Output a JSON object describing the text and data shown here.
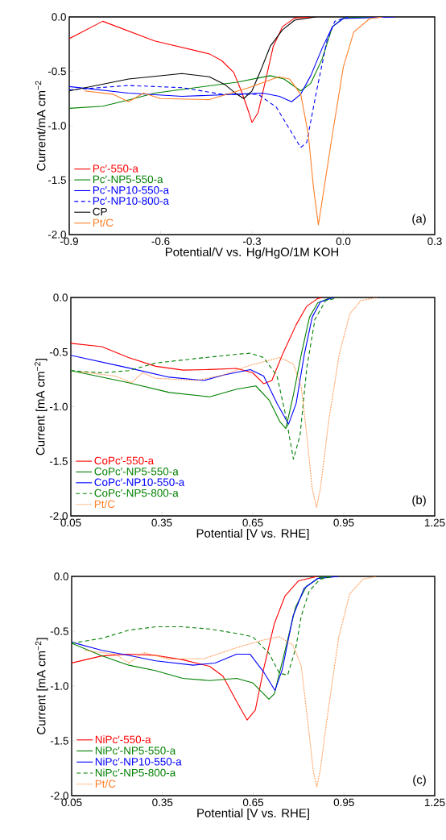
{
  "chart_data": [
    {
      "type": "line",
      "xlabel": "Potential/V vs. Hg/HgO/1M KOH",
      "ylabel": "Current/mA cm$^{−2}$",
      "annotations": [
        "(a)"
      ],
      "legend": "bottom left",
      "grid": false,
      "xlim": [
        -0.9,
        0.3
      ],
      "xticks": [
        {
          "value": -0.9,
          "label": "-0.9"
        },
        {
          "value": -0.6,
          "label": "-0.6"
        },
        {
          "value": -0.3,
          "label": "-0.3"
        },
        {
          "value": 0,
          "label": "0.0"
        },
        {
          "value": 0.3,
          "label": "0.3"
        }
      ],
      "ylim": [
        -2,
        0
      ],
      "yticks": [
        {
          "value": -2,
          "label": "-2.0"
        },
        {
          "value": -1.5,
          "label": "-1.5"
        },
        {
          "value": -1,
          "label": "-1.0"
        },
        {
          "value": -0.5,
          "label": "-0.5"
        },
        {
          "value": 0,
          "label": "0.0"
        }
      ],
      "series": [
        {
          "name": "Pc′-550-a",
          "color": "#ff0000",
          "line_style": "solid",
          "x": [
            -0.9,
            -0.79,
            -0.62,
            -0.44,
            -0.4,
            -0.36,
            -0.335,
            -0.31,
            -0.3,
            -0.28,
            -0.256,
            -0.23,
            -0.2,
            -0.16,
            -0.09
          ],
          "values": [
            -0.2,
            -0.04,
            -0.22,
            -0.34,
            -0.4,
            -0.51,
            -0.68,
            -0.88,
            -0.97,
            -0.88,
            -0.59,
            -0.27,
            -0.09,
            -0.01,
            0
          ]
        },
        {
          "name": "Pc′-NP5-550-a",
          "color": "#008000",
          "line_style": "solid",
          "x": [
            -0.9,
            -0.79,
            -0.7,
            -0.62,
            -0.485,
            -0.35,
            -0.24,
            -0.195,
            -0.14,
            -0.107,
            -0.07,
            -0.036,
            0,
            0.09
          ],
          "values": [
            -0.84,
            -0.82,
            -0.76,
            -0.7,
            -0.65,
            -0.6,
            -0.54,
            -0.57,
            -0.68,
            -0.61,
            -0.39,
            -0.09,
            -0.01,
            0
          ]
        },
        {
          "name": "Pc′-NP10-550-a",
          "color": "#0000ff",
          "line_style": "solid",
          "x": [
            -0.9,
            -0.705,
            -0.53,
            -0.35,
            -0.265,
            -0.21,
            -0.17,
            -0.14,
            -0.107,
            -0.07,
            -0.036,
            0,
            0.17
          ],
          "values": [
            -0.64,
            -0.7,
            -0.73,
            -0.71,
            -0.7,
            -0.73,
            -0.78,
            -0.71,
            -0.54,
            -0.29,
            -0.09,
            -0.015,
            0
          ]
        },
        {
          "name": "Pc′-NP10-800-a",
          "color": "#0000ff",
          "line_style": "dashed",
          "x": [
            -0.9,
            -0.705,
            -0.53,
            -0.4,
            -0.28,
            -0.22,
            -0.177,
            -0.14,
            -0.12,
            -0.09,
            -0.054,
            -0.028,
            0.016
          ],
          "values": [
            -0.67,
            -0.63,
            -0.65,
            -0.71,
            -0.71,
            -0.83,
            -1.03,
            -1.2,
            -1.15,
            -0.71,
            -0.22,
            -0.04,
            0
          ]
        },
        {
          "name": "CP",
          "color": "#000000",
          "line_style": "solid",
          "x": [
            -0.9,
            -0.705,
            -0.53,
            -0.44,
            -0.39,
            -0.35,
            -0.327,
            -0.3,
            -0.274,
            -0.24,
            -0.2,
            -0.16,
            -0.09
          ],
          "values": [
            -0.68,
            -0.57,
            -0.52,
            -0.55,
            -0.62,
            -0.71,
            -0.75,
            -0.68,
            -0.51,
            -0.27,
            -0.12,
            -0.03,
            0
          ]
        },
        {
          "name": "Pt/C",
          "color": "#ff7f27",
          "line_style": "solid",
          "x": [
            -0.85,
            -0.757,
            -0.705,
            -0.656,
            -0.6,
            -0.44,
            -0.31,
            -0.212,
            -0.177,
            -0.14,
            -0.115,
            -0.098,
            -0.082,
            -0.063,
            -0.036,
            0,
            0.034,
            0.087,
            0.13
          ],
          "values": [
            -0.68,
            -0.71,
            -0.78,
            -0.7,
            -0.75,
            -0.76,
            -0.65,
            -0.55,
            -0.57,
            -0.71,
            -1.08,
            -1.57,
            -1.91,
            -1.57,
            -1.08,
            -0.46,
            -0.14,
            -0.015,
            0
          ]
        }
      ]
    },
    {
      "type": "line",
      "xlabel": "Potential [V vs. RHE]",
      "ylabel": "Current [mA cm$^{−2}$]",
      "annotations": [
        "(b)"
      ],
      "legend": "bottom left",
      "grid": false,
      "xlim": [
        0.05,
        1.25
      ],
      "xticks": [
        {
          "value": 0.05,
          "label": "0.05"
        },
        {
          "value": 0.35,
          "label": "0.35"
        },
        {
          "value": 0.65,
          "label": "0.65"
        },
        {
          "value": 0.95,
          "label": "0.95"
        },
        {
          "value": 1.25,
          "label": "1.25"
        }
      ],
      "ylim": [
        -2,
        0
      ],
      "yticks": [
        {
          "value": -2,
          "label": "-2.0"
        },
        {
          "value": -1.5,
          "label": "-1.5"
        },
        {
          "value": -1,
          "label": "-1.0"
        },
        {
          "value": -0.5,
          "label": "-0.5"
        },
        {
          "value": 0,
          "label": "0.0"
        }
      ],
      "series": [
        {
          "name": "CoPc′-550-a",
          "color": "#ff0000",
          "line_style": "solid",
          "x": [
            0.05,
            0.152,
            0.24,
            0.33,
            0.42,
            0.508,
            0.597,
            0.65,
            0.686,
            0.713,
            0.748,
            0.793,
            0.828,
            0.864,
            0.88
          ],
          "values": [
            -0.42,
            -0.45,
            -0.55,
            -0.63,
            -0.665,
            -0.66,
            -0.65,
            -0.69,
            -0.79,
            -0.76,
            -0.52,
            -0.25,
            -0.08,
            -0.01,
            0
          ]
        },
        {
          "name": "CoPc′-NP5-550-a",
          "color": "#008000",
          "line_style": "solid",
          "x": [
            0.05,
            0.24,
            0.375,
            0.508,
            0.597,
            0.66,
            0.704,
            0.74,
            0.759,
            0.784,
            0.81,
            0.837,
            0.864,
            0.908
          ],
          "values": [
            -0.67,
            -0.78,
            -0.87,
            -0.91,
            -0.84,
            -0.81,
            -0.94,
            -1.14,
            -1.2,
            -0.89,
            -0.52,
            -0.18,
            -0.05,
            0
          ]
        },
        {
          "name": "CoPc′-NP10-550-a",
          "color": "#0000ff",
          "line_style": "solid",
          "x": [
            0.05,
            0.24,
            0.375,
            0.49,
            0.553,
            0.642,
            0.686,
            0.73,
            0.768,
            0.793,
            0.82,
            0.846,
            0.873,
            0.917
          ],
          "values": [
            -0.53,
            -0.645,
            -0.73,
            -0.76,
            -0.71,
            -0.66,
            -0.72,
            -0.97,
            -1.16,
            -0.97,
            -0.52,
            -0.18,
            -0.04,
            0
          ]
        },
        {
          "name": "CoPc′-NP5-800-a",
          "color": "#008000",
          "line_style": "dashed",
          "x": [
            0.05,
            0.152,
            0.24,
            0.33,
            0.46,
            0.597,
            0.642,
            0.686,
            0.73,
            0.757,
            0.784,
            0.806,
            0.828,
            0.855,
            0.89,
            0.935
          ],
          "values": [
            -0.67,
            -0.69,
            -0.67,
            -0.6,
            -0.56,
            -0.52,
            -0.51,
            -0.55,
            -0.72,
            -1.06,
            -1.48,
            -1.26,
            -0.645,
            -0.2,
            -0.03,
            0
          ]
        },
        {
          "name": "Pt/C",
          "color": "#ff7f27",
          "line_style": "dotted",
          "x": [
            0.081,
            0.197,
            0.25,
            0.286,
            0.33,
            0.464,
            0.553,
            0.642,
            0.74,
            0.784,
            0.81,
            0.828,
            0.846,
            0.86,
            0.873,
            0.9,
            0.935,
            0.97,
            1.006,
            1.06
          ],
          "values": [
            -0.68,
            -0.72,
            -0.78,
            -0.69,
            -0.74,
            -0.76,
            -0.71,
            -0.62,
            -0.55,
            -0.61,
            -0.82,
            -1.26,
            -1.75,
            -1.92,
            -1.75,
            -1.14,
            -0.52,
            -0.15,
            -0.03,
            0
          ]
        }
      ]
    },
    {
      "type": "line",
      "xlabel": "Potential [V vs. RHE]",
      "ylabel": "Current [mA cm$^{−2}$]",
      "annotations": [
        "(c)"
      ],
      "legend": "bottom left",
      "grid": false,
      "xlim": [
        0.05,
        1.25
      ],
      "xticks": [
        {
          "value": 0.05,
          "label": "0.05"
        },
        {
          "value": 0.35,
          "label": "0.35"
        },
        {
          "value": 0.65,
          "label": "0.65"
        },
        {
          "value": 0.95,
          "label": "0.95"
        },
        {
          "value": 1.25,
          "label": "1.25"
        }
      ],
      "ylim": [
        -2,
        0
      ],
      "yticks": [
        {
          "value": -2,
          "label": "-2.0"
        },
        {
          "value": -1.5,
          "label": "-1.5"
        },
        {
          "value": -1,
          "label": "-1.0"
        },
        {
          "value": -0.5,
          "label": "-0.5"
        },
        {
          "value": 0,
          "label": "0.0"
        }
      ],
      "series": [
        {
          "name": "NiPc′-550-a",
          "color": "#ff0000",
          "line_style": "solid",
          "x": [
            0.05,
            0.15,
            0.239,
            0.328,
            0.417,
            0.506,
            0.55,
            0.595,
            0.63,
            0.657,
            0.684,
            0.72,
            0.755,
            0.8,
            0.862
          ],
          "values": [
            -0.79,
            -0.725,
            -0.71,
            -0.72,
            -0.76,
            -0.82,
            -0.91,
            -1.14,
            -1.31,
            -1.22,
            -0.85,
            -0.43,
            -0.18,
            -0.04,
            0
          ]
        },
        {
          "name": "NiPc′-NP5-550-a",
          "color": "#008000",
          "line_style": "solid",
          "x": [
            0.05,
            0.15,
            0.239,
            0.328,
            0.417,
            0.506,
            0.595,
            0.648,
            0.702,
            0.72,
            0.755,
            0.79,
            0.826,
            0.87,
            0.915
          ],
          "values": [
            -0.61,
            -0.725,
            -0.81,
            -0.86,
            -0.93,
            -0.95,
            -0.93,
            -0.97,
            -1.12,
            -1.07,
            -0.68,
            -0.28,
            -0.09,
            -0.01,
            0
          ]
        },
        {
          "name": "NiPc′-NP10-550-a",
          "color": "#0000ff",
          "line_style": "solid",
          "x": [
            0.05,
            0.15,
            0.239,
            0.328,
            0.452,
            0.524,
            0.595,
            0.64,
            0.684,
            0.722,
            0.746,
            0.782,
            0.818,
            0.862,
            0.933
          ],
          "values": [
            -0.6,
            -0.675,
            -0.72,
            -0.77,
            -0.81,
            -0.79,
            -0.71,
            -0.71,
            -0.87,
            -1.04,
            -0.85,
            -0.36,
            -0.11,
            -0.02,
            0
          ]
        },
        {
          "name": "NiPc′-NP5-800-a",
          "color": "#008000",
          "line_style": "dashed",
          "x": [
            0.05,
            0.15,
            0.239,
            0.328,
            0.417,
            0.506,
            0.595,
            0.648,
            0.702,
            0.737,
            0.764,
            0.791,
            0.809,
            0.835,
            0.871,
            0.915
          ],
          "values": [
            -0.61,
            -0.565,
            -0.49,
            -0.46,
            -0.46,
            -0.48,
            -0.52,
            -0.55,
            -0.7,
            -0.885,
            -0.9,
            -0.65,
            -0.36,
            -0.135,
            -0.025,
            0
          ]
        },
        {
          "name": "Pt/C",
          "color": "#ff7f27",
          "line_style": "dotted",
          "x": [
            0.092,
            0.194,
            0.239,
            0.288,
            0.372,
            0.488,
            0.595,
            0.684,
            0.737,
            0.782,
            0.809,
            0.831,
            0.849,
            0.86,
            0.871,
            0.898,
            0.933,
            0.969,
            1.013,
            1.058
          ],
          "values": [
            -0.675,
            -0.71,
            -0.79,
            -0.695,
            -0.755,
            -0.75,
            -0.65,
            -0.58,
            -0.55,
            -0.63,
            -0.82,
            -1.34,
            -1.78,
            -1.92,
            -1.78,
            -1.22,
            -0.55,
            -0.16,
            -0.025,
            0
          ]
        }
      ]
    }
  ]
}
